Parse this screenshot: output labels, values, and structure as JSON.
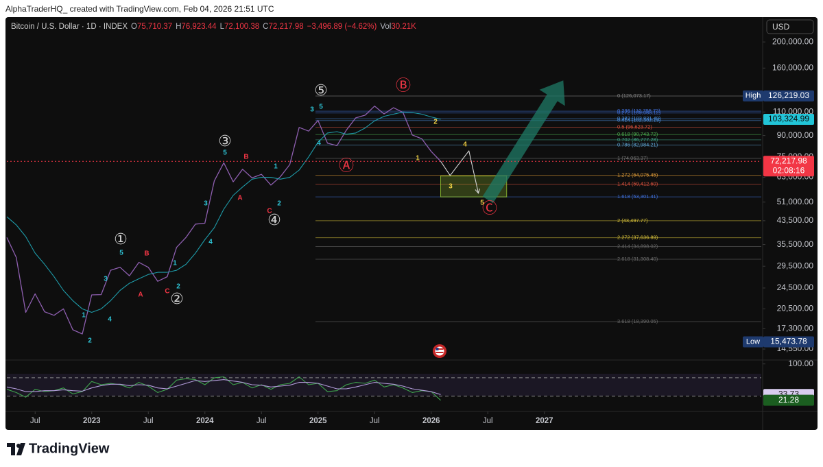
{
  "header": {
    "credit": "AlphaTraderHQ_ created with TradingView.com, Feb 04, 2026 21:51 UTC"
  },
  "footer": {
    "logo": "TradingView"
  },
  "chart_data": [
    {
      "type": "line",
      "title": "Bitcoin / U.S. Dollar · 1D · INDEX",
      "ohlc": [
        {
          "key": "O",
          "value": 75710.37,
          "label": "75,710.37"
        },
        {
          "key": "H",
          "value": 76923.44,
          "label": "76,923.44"
        },
        {
          "key": "L",
          "value": 72100.38,
          "label": "72,100.38"
        },
        {
          "key": "C",
          "value": 72217.98,
          "label": "72,217.98"
        }
      ],
      "change": "−3,496.89 (−4.62%)",
      "volume_key": "Vol",
      "volume": "30.21K",
      "currency": "USD",
      "log_scale": true,
      "xlim": [
        "2022-04",
        "2028-12"
      ],
      "xticks": [
        {
          "value": "2022-07",
          "label": "Jul"
        },
        {
          "value": "2023-01",
          "label": "2023"
        },
        {
          "value": "2023-07",
          "label": "Jul"
        },
        {
          "value": "2024-01",
          "label": "2024"
        },
        {
          "value": "2024-07",
          "label": "Jul"
        },
        {
          "value": "2025-01",
          "label": "2025"
        },
        {
          "value": "2025-07",
          "label": "Jul"
        },
        {
          "value": "2026-01",
          "label": "2026"
        },
        {
          "value": "2026-07",
          "label": "Jul"
        },
        {
          "value": "2027-01",
          "label": "2027"
        }
      ],
      "ylim": [
        13250,
        240000
      ],
      "yticks": [
        {
          "value": 200000,
          "label": "200,000.00"
        },
        {
          "value": 160000,
          "label": "160,000.00"
        },
        {
          "value": 110000,
          "label": "110,000.00"
        },
        {
          "value": 90000,
          "label": "90,000.00"
        },
        {
          "value": 75000,
          "label": "75,000.00"
        },
        {
          "value": 63000,
          "label": "63,000.00"
        },
        {
          "value": 51000,
          "label": "51,000.00"
        },
        {
          "value": 43500,
          "label": "43,500.00"
        },
        {
          "value": 35500,
          "label": "35,500.00"
        },
        {
          "value": 29500,
          "label": "29,500.00"
        },
        {
          "value": 24500,
          "label": "24,500.00"
        },
        {
          "value": 20500,
          "label": "20,500.00"
        },
        {
          "value": 17300,
          "label": "17,300.00"
        },
        {
          "value": 14550,
          "label": "14,550.00"
        }
      ],
      "x": [
        "2022-04",
        "2022-05",
        "2022-06",
        "2022-07",
        "2022-08",
        "2022-09",
        "2022-10",
        "2022-11",
        "2022-12",
        "2023-01",
        "2023-02",
        "2023-03",
        "2023-04",
        "2023-05",
        "2023-06",
        "2023-07",
        "2023-08",
        "2023-09",
        "2023-10",
        "2023-11",
        "2023-12",
        "2024-01",
        "2024-02",
        "2024-03",
        "2024-04",
        "2024-05",
        "2024-06",
        "2024-07",
        "2024-08",
        "2024-09",
        "2024-10",
        "2024-11",
        "2024-12",
        "2025-01",
        "2025-02",
        "2025-03",
        "2025-04",
        "2025-05",
        "2025-06",
        "2025-07",
        "2025-08",
        "2025-09",
        "2025-10",
        "2025-11",
        "2025-12",
        "2026-01",
        "2026-02"
      ],
      "series": [
        {
          "color": "#8e5fb0",
          "values": [
            37700,
            31800,
            19900,
            23300,
            20000,
            19400,
            20500,
            17150,
            16550,
            23100,
            23150,
            28500,
            29250,
            27200,
            30480,
            29230,
            25940,
            26970,
            34650,
            37720,
            42270,
            42580,
            61130,
            71290,
            60640,
            67490,
            62680,
            64620,
            58970,
            63330,
            70220,
            96450,
            93430,
            102400,
            84350,
            82550,
            94200,
            104600,
            107100,
            115700,
            108200,
            114050,
            109600,
            90400,
            87500,
            78600,
            72217.98
          ]
        },
        {
          "color": "#1e9aa8",
          "values": [
            45000,
            42000,
            38000,
            33000,
            30000,
            27000,
            24000,
            22000,
            20500,
            19900,
            20500,
            22000,
            24000,
            25500,
            26500,
            27500,
            28000,
            28000,
            28500,
            30000,
            33000,
            37000,
            41000,
            48000,
            54000,
            58000,
            62000,
            63000,
            63000,
            62000,
            63000,
            67000,
            75000,
            85000,
            92000,
            93000,
            91000,
            92000,
            96000,
            102000,
            106000,
            108000,
            110000,
            109500,
            108000,
            105500,
            103324.99
          ]
        },
        {
          "color": "#d6d6d6",
          "x": [
            "2026-02",
            "2026-03",
            "2026-05",
            "2026-06"
          ],
          "values": [
            72217.98,
            64000,
            79000,
            55000
          ]
        }
      ],
      "target_zone": {
        "color": "#9acd32",
        "x": [
          "2026-02",
          "2026-09"
        ],
        "values": [
          63700,
          53300
        ]
      },
      "target_arrow": {
        "color": "#1f7a66",
        "x": [
          "2026-07",
          "2027-03"
        ],
        "values": [
          52000,
          144000
        ]
      },
      "fib_levels": [
        {
          "label": "0 (126,073.17)",
          "value": 126073.17,
          "color": "#8a8a8a"
        },
        {
          "label": "0.236 (110,795.72)",
          "value": 110795.72,
          "color": "#3f6fd8"
        },
        {
          "label": "0.272 (109,085.12)",
          "value": 109085.12,
          "color": "#3f6fd8"
        },
        {
          "label": "0.382 (103,831.49)",
          "value": 103831.49,
          "color": "#4a8fe0"
        },
        {
          "label": "0.414 (102,302.19)",
          "value": 102302.19,
          "color": "#4a8fe0"
        },
        {
          "label": "0.5 (96,623.72)",
          "value": 96623.72,
          "color": "#e0533f"
        },
        {
          "label": "0.618 (90,743.72)",
          "value": 90743.72,
          "color": "#4caf50"
        },
        {
          "label": "0.702 (86,777.28)",
          "value": 86777.28,
          "color": "#3fa386"
        },
        {
          "label": "0.786 (82,984.21)",
          "value": 82984.21,
          "color": "#5fa8d8"
        },
        {
          "label": "1 (74,063.37)",
          "value": 74063.37,
          "color": "#7a7a7a"
        },
        {
          "label": "1.272 (64,075.45)",
          "value": 64075.45,
          "color": "#e8a23a"
        },
        {
          "label": "1.414 (59,412.60)",
          "value": 59412.6,
          "color": "#e0533f"
        },
        {
          "label": "1.618 (53,301.41)",
          "value": 53301.41,
          "color": "#3f6fd8"
        },
        {
          "label": "2 (43,497.77)",
          "value": 43497.77,
          "color": "#d8c13a"
        },
        {
          "label": "2.272 (37,636.89)",
          "value": 37636.89,
          "color": "#d8c13a"
        },
        {
          "label": "2.414 (34,898.02)",
          "value": 34898.02,
          "color": "#6a6a6a"
        },
        {
          "label": "2.618 (31,308.40)",
          "value": 31308.4,
          "color": "#6a6a6a"
        },
        {
          "label": "3.618 (18,390.05)",
          "value": 18390.05,
          "color": "#6a6a6a"
        }
      ],
      "wave_labels": {
        "primary": {
          "color": "#d0d0d0",
          "labels": [
            "①",
            "②",
            "③",
            "④",
            "⑤"
          ]
        },
        "abc": {
          "color": "#f23645",
          "labels": [
            "Ⓐ",
            "Ⓑ",
            "Ⓒ"
          ]
        },
        "minor": {
          "color": "#2ec4d6",
          "labels": [
            "1",
            "2",
            "3",
            "4",
            "5",
            "1",
            "2",
            "3",
            "4",
            "5",
            "1",
            "2",
            "3",
            "4",
            "5"
          ]
        },
        "minor_abc": {
          "color": "#f23645",
          "labels": [
            "A",
            "B",
            "C",
            "A",
            "B",
            "C"
          ]
        },
        "projection": {
          "color": "#f5d547",
          "labels": [
            "1",
            "2",
            "3",
            "4",
            "5"
          ]
        }
      },
      "price_tags": [
        {
          "caption": "High",
          "value": 126219.03,
          "label": "126,219.03",
          "color": "#1e3a6e",
          "text_color": "#ffffff"
        },
        {
          "value": 103324.99,
          "label": "103,324.99",
          "color": "#22c5d8",
          "text_color": "#0b0b0b"
        },
        {
          "value": 72217.98,
          "label": "72,217.98",
          "timer": "02:08:16",
          "color": "#f23645",
          "text_color": "#ffffff",
          "line": true
        },
        {
          "caption": "Low",
          "value": 15473.78,
          "label": "15,473.78",
          "color": "#1e3a6e",
          "text_color": "#ffffff"
        }
      ]
    },
    {
      "type": "line",
      "ylim": [
        0,
        104
      ],
      "yticks": [
        {
          "value": 100,
          "label": "100.00"
        }
      ],
      "levels": [
        70,
        30
      ],
      "x": [
        "2022-04",
        "2022-05",
        "2022-06",
        "2022-07",
        "2022-08",
        "2022-09",
        "2022-10",
        "2022-11",
        "2022-12",
        "2023-01",
        "2023-02",
        "2023-03",
        "2023-04",
        "2023-05",
        "2023-06",
        "2023-07",
        "2023-08",
        "2023-09",
        "2023-10",
        "2023-11",
        "2023-12",
        "2024-01",
        "2024-02",
        "2024-03",
        "2024-04",
        "2024-05",
        "2024-06",
        "2024-07",
        "2024-08",
        "2024-09",
        "2024-10",
        "2024-11",
        "2024-12",
        "2025-01",
        "2025-02",
        "2025-03",
        "2025-04",
        "2025-05",
        "2025-06",
        "2025-07",
        "2025-08",
        "2025-09",
        "2025-10",
        "2025-11",
        "2025-12",
        "2026-01",
        "2026-02"
      ],
      "series": [
        {
          "color": "#3fa34d",
          "values": [
            45,
            38,
            28,
            45,
            40,
            42,
            48,
            35,
            40,
            62,
            55,
            58,
            55,
            48,
            60,
            52,
            38,
            45,
            65,
            68,
            66,
            55,
            70,
            72,
            55,
            60,
            48,
            55,
            45,
            55,
            58,
            72,
            55,
            58,
            40,
            42,
            55,
            60,
            58,
            65,
            50,
            55,
            48,
            38,
            42,
            40,
            21.28
          ]
        },
        {
          "color": "#b39ddb",
          "values": [
            50,
            46,
            40,
            40,
            42,
            42,
            44,
            42,
            41,
            48,
            53,
            56,
            56,
            53,
            55,
            54,
            48,
            46,
            52,
            58,
            64,
            62,
            64,
            66,
            63,
            60,
            55,
            54,
            50,
            52,
            54,
            60,
            60,
            58,
            52,
            46,
            46,
            50,
            55,
            60,
            58,
            56,
            52,
            46,
            43,
            40,
            33.73
          ]
        }
      ],
      "price_tags": [
        {
          "value": 33.73,
          "label": "33.73",
          "color": "#d9cdf0",
          "text_color": "#1a1a1a"
        },
        {
          "value": 21.28,
          "label": "21.28",
          "color": "#1b5e20",
          "text_color": "#ffffff"
        }
      ]
    }
  ]
}
